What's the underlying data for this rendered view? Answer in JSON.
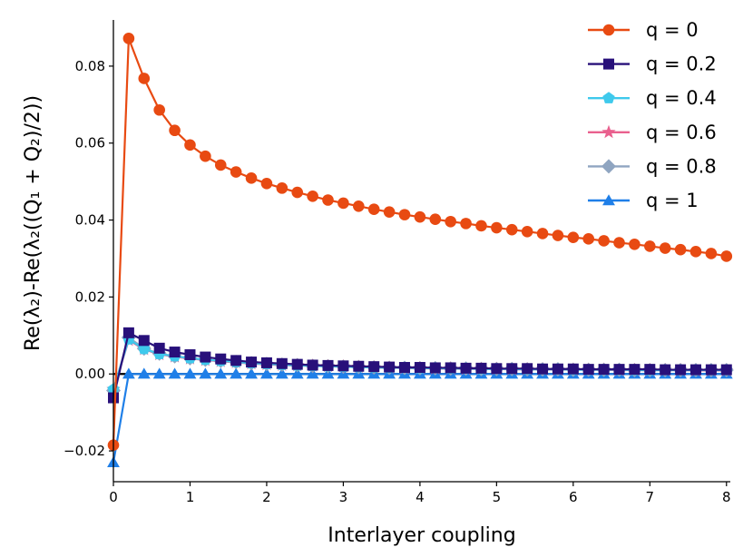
{
  "chart_data": {
    "type": "line",
    "xlabel": "Interlayer coupling",
    "ylabel": "Re(λ₂)-Re(λ₂((Q₁ + Q₂)/2))",
    "xlim": [
      0,
      8.05
    ],
    "ylim": [
      -0.028,
      0.092
    ],
    "x_ticks": [
      0,
      1,
      2,
      3,
      4,
      5,
      6,
      7,
      8
    ],
    "x_tick_labels": [
      "0",
      "1",
      "2",
      "3",
      "4",
      "5",
      "6",
      "7",
      "8"
    ],
    "y_ticks": [
      -0.02,
      0.0,
      0.02,
      0.04,
      0.06,
      0.08
    ],
    "y_tick_labels": [
      "−0.02",
      "0.00",
      "0.02",
      "0.04",
      "0.06",
      "0.08"
    ],
    "grid": false,
    "legend_position": "top-right",
    "zero_line": true,
    "x_start": 0,
    "x_step": 0.2,
    "series": [
      {
        "name": "q = 0",
        "color": "#e84a12",
        "marker": "circle",
        "values": [
          -0.0185,
          0.0872,
          0.0768,
          0.0686,
          0.0633,
          0.0595,
          0.0566,
          0.0543,
          0.0525,
          0.0509,
          0.0495,
          0.0483,
          0.0472,
          0.0462,
          0.0452,
          0.0444,
          0.0436,
          0.0428,
          0.0421,
          0.0414,
          0.0408,
          0.0402,
          0.0396,
          0.0391,
          0.0385,
          0.038,
          0.0375,
          0.037,
          0.0365,
          0.036,
          0.0355,
          0.0351,
          0.0346,
          0.0341,
          0.0337,
          0.0332,
          0.0327,
          0.0323,
          0.0318,
          0.0313,
          0.0306
        ]
      },
      {
        "name": "q = 0.2",
        "color": "#28107a",
        "marker": "square",
        "values": [
          -0.0062,
          0.0107,
          0.0087,
          0.0067,
          0.0057,
          0.005,
          0.0044,
          0.0039,
          0.0035,
          0.0031,
          0.0029,
          0.0027,
          0.0025,
          0.0023,
          0.0022,
          0.0021,
          0.002,
          0.0019,
          0.0018,
          0.0017,
          0.0017,
          0.0016,
          0.0016,
          0.0015,
          0.0015,
          0.0014,
          0.0014,
          0.0014,
          0.0013,
          0.0013,
          0.0013,
          0.0012,
          0.0012,
          0.0012,
          0.0012,
          0.0012,
          0.0011,
          0.0011,
          0.0011,
          0.0011,
          0.0011
        ]
      },
      {
        "name": "q = 0.4",
        "color": "#3ec9ec",
        "marker": "pentagon",
        "values": [
          -0.004,
          0.009,
          0.0065,
          0.0052,
          0.0046,
          0.0041,
          0.0037,
          0.0034,
          0.0031,
          0.0028,
          0.0026,
          0.0024,
          0.0022,
          0.0021,
          0.002,
          0.0019,
          0.0018,
          0.0017,
          0.0016,
          0.0016,
          0.0015,
          0.0015,
          0.0014,
          0.0014,
          0.0013,
          0.0013,
          0.0013,
          0.0012,
          0.0012,
          0.0012,
          0.0011,
          0.0011,
          0.0011,
          0.0011,
          0.001,
          0.001,
          0.001,
          0.001,
          0.001,
          0.001,
          0.001
        ]
      },
      {
        "name": "q = 0.6",
        "color": "#e9608e",
        "marker": "star",
        "values": [
          -0.004,
          0.0088,
          0.0064,
          0.0051,
          0.0045,
          0.004,
          0.0036,
          0.0033,
          0.003,
          0.0027,
          0.0025,
          0.0023,
          0.0022,
          0.0021,
          0.002,
          0.0019,
          0.0018,
          0.0017,
          0.0016,
          0.0015,
          0.0015,
          0.0014,
          0.0014,
          0.0013,
          0.0013,
          0.0013,
          0.0012,
          0.0012,
          0.0012,
          0.0011,
          0.0011,
          0.0011,
          0.0011,
          0.001,
          0.001,
          0.001,
          0.001,
          0.001,
          0.0009,
          0.0009,
          0.0009
        ]
      },
      {
        "name": "q = 0.8",
        "color": "#8fa5c1",
        "marker": "diamond",
        "values": [
          -0.0043,
          0.0095,
          0.0066,
          0.0053,
          0.0046,
          0.0041,
          0.0037,
          0.0034,
          0.0031,
          0.0028,
          0.0026,
          0.0024,
          0.0023,
          0.0021,
          0.002,
          0.0019,
          0.0018,
          0.0017,
          0.0016,
          0.0016,
          0.0015,
          0.0015,
          0.0014,
          0.0014,
          0.0013,
          0.0013,
          0.0013,
          0.0012,
          0.0012,
          0.0012,
          0.0011,
          0.0011,
          0.0011,
          0.0011,
          0.001,
          0.001,
          0.001,
          0.001,
          0.001,
          0.001,
          0.001
        ]
      },
      {
        "name": "q = 1",
        "color": "#1f7fe8",
        "marker": "triangle",
        "values": [
          -0.023,
          0.0,
          0.0,
          0.0,
          0.0,
          0.0,
          0.0,
          0.0,
          0.0,
          0.0,
          0.0,
          0.0,
          0.0,
          0.0,
          0.0,
          0.0,
          0.0,
          0.0,
          0.0,
          0.0,
          0.0,
          0.0,
          0.0,
          0.0,
          0.0,
          0.0,
          0.0,
          0.0,
          0.0,
          0.0,
          0.0,
          0.0,
          0.0,
          0.0,
          0.0,
          0.0,
          0.0,
          0.0,
          0.0,
          0.0,
          0.0
        ]
      }
    ]
  }
}
